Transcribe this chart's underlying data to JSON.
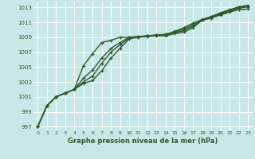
{
  "title": "Graphe pression niveau de la mer (hPa)",
  "bg_color": "#c8e8e8",
  "grid_color": "#ffffff",
  "line_color": "#2d5a2d",
  "marker_color": "#2d5a2d",
  "xlim": [
    -0.5,
    23.5
  ],
  "ylim": [
    996.5,
    1013.8
  ],
  "yticks": [
    997,
    999,
    1001,
    1003,
    1005,
    1007,
    1009,
    1011,
    1013
  ],
  "xticks": [
    0,
    1,
    2,
    3,
    4,
    5,
    6,
    7,
    8,
    9,
    10,
    11,
    12,
    13,
    14,
    15,
    16,
    17,
    18,
    19,
    20,
    21,
    22,
    23
  ],
  "series": [
    [
      997.0,
      999.8,
      1001.0,
      1001.5,
      1002.0,
      1005.2,
      1006.8,
      1008.3,
      1008.6,
      1009.0,
      1009.0,
      1009.1,
      1009.2,
      1009.2,
      1009.2,
      1009.5,
      1009.7,
      1010.3,
      1011.3,
      1011.6,
      1012.0,
      1012.4,
      1012.7,
      1012.8
    ],
    [
      997.0,
      999.8,
      1001.0,
      1001.5,
      1002.0,
      1003.5,
      1004.6,
      1006.2,
      1007.5,
      1008.3,
      1009.0,
      1009.1,
      1009.2,
      1009.3,
      1009.3,
      1009.6,
      1009.9,
      1010.5,
      1011.3,
      1011.6,
      1012.1,
      1012.5,
      1012.9,
      1013.1
    ],
    [
      997.0,
      999.8,
      1001.0,
      1001.5,
      1002.0,
      1003.0,
      1003.8,
      1005.5,
      1007.0,
      1008.0,
      1008.9,
      1009.0,
      1009.2,
      1009.3,
      1009.4,
      1009.7,
      1010.1,
      1010.7,
      1011.3,
      1011.7,
      1012.2,
      1012.6,
      1013.0,
      1013.2
    ],
    [
      997.0,
      999.8,
      1001.0,
      1001.5,
      1002.0,
      1002.8,
      1003.2,
      1004.5,
      1006.2,
      1007.5,
      1008.8,
      1009.0,
      1009.1,
      1009.3,
      1009.4,
      1009.8,
      1010.3,
      1010.9,
      1011.4,
      1011.8,
      1012.3,
      1012.7,
      1013.1,
      1013.3
    ]
  ],
  "font_color": "#2d5a2d",
  "xlabel_fontsize": 6,
  "tick_fontsize": 5.0,
  "linewidths": [
    1.0,
    1.0,
    1.0,
    1.0
  ],
  "marker_size": 3,
  "figsize": [
    3.2,
    2.0
  ],
  "dpi": 100
}
